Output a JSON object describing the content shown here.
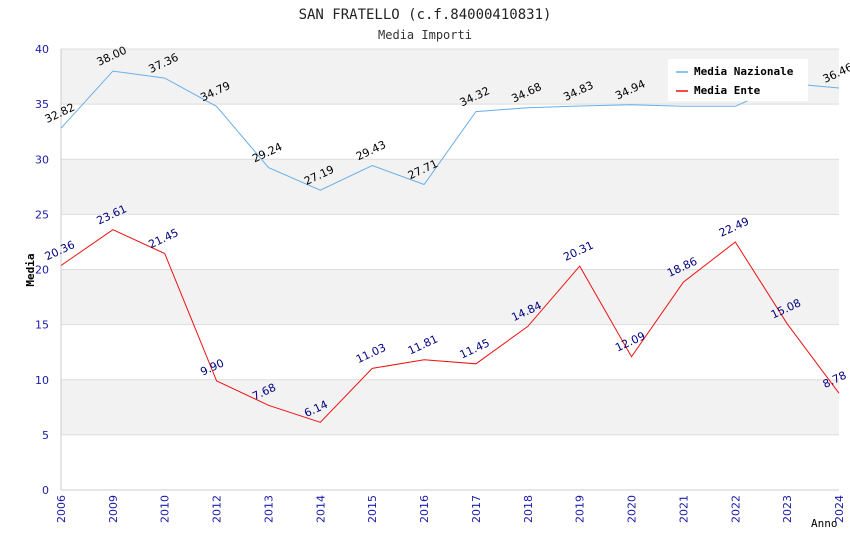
{
  "chart_data": {
    "type": "line",
    "title": "SAN FRATELLO (c.f.84000410831)",
    "subtitle": "Media Importi",
    "xlabel": "Anno",
    "ylabel": "Media",
    "ylim": [
      0,
      40
    ],
    "yticks": [
      "0",
      "5",
      "10",
      "15",
      "20",
      "25",
      "30",
      "35",
      "40"
    ],
    "categories": [
      "2006",
      "2009",
      "2010",
      "2012",
      "2013",
      "2014",
      "2015",
      "2016",
      "2017",
      "2018",
      "2019",
      "2020",
      "2021",
      "2022",
      "2023",
      "2024"
    ],
    "legend_position": "top-right",
    "series": [
      {
        "name": "Media Nazionale",
        "color": "#6aaee8",
        "label_color": "#000000",
        "values": [
          32.82,
          38.0,
          37.36,
          34.79,
          29.24,
          27.19,
          29.43,
          27.71,
          34.32,
          34.68,
          34.83,
          34.94,
          34.8,
          34.8,
          36.9,
          36.46
        ],
        "labels": [
          "32.82",
          "38.00",
          "37.36",
          "34.79",
          "29.24",
          "27.19",
          "29.43",
          "27.71",
          "34.32",
          "34.68",
          "34.83",
          "34.94",
          null,
          null,
          null,
          "36.46"
        ]
      },
      {
        "name": "Media Ente",
        "color": "#ee1111",
        "label_color": "#000080",
        "values": [
          20.36,
          23.61,
          21.45,
          9.9,
          7.68,
          6.14,
          11.03,
          11.81,
          11.45,
          14.84,
          20.31,
          12.09,
          18.86,
          22.49,
          15.08,
          8.78
        ],
        "labels": [
          "20.36",
          "23.61",
          "21.45",
          "9.90",
          "7.68",
          "6.14",
          "11.03",
          "11.81",
          "11.45",
          "14.84",
          "20.31",
          "12.09",
          "18.86",
          "22.49",
          "15.08",
          "8.78"
        ]
      }
    ]
  }
}
